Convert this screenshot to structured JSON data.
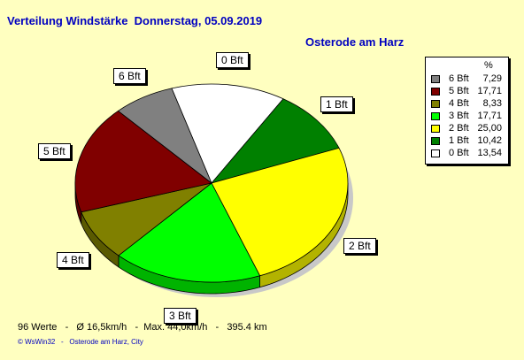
{
  "header": {
    "title": "Verteilung Windstärke  Donnerstag, 05.09.2019",
    "location": "Osterode am Harz"
  },
  "legend": {
    "unit_header": "%"
  },
  "chart_data": {
    "type": "pie",
    "title": "Verteilung Windstärke  Donnerstag, 05.09.2019",
    "subtitle": "Osterode am Harz",
    "legend_position": "top-right",
    "slices": [
      {
        "label": "0 Bft",
        "value": 13.54,
        "value_text": "13,54",
        "color": "#ffffff"
      },
      {
        "label": "1 Bft",
        "value": 10.42,
        "value_text": "10,42",
        "color": "#008000"
      },
      {
        "label": "2 Bft",
        "value": 25.0,
        "value_text": "25,00",
        "color": "#ffff00"
      },
      {
        "label": "3 Bft",
        "value": 17.71,
        "value_text": "17,71",
        "color": "#00ff00"
      },
      {
        "label": "4 Bft",
        "value": 8.33,
        "value_text": "8,33",
        "color": "#808000"
      },
      {
        "label": "5 Bft",
        "value": 17.71,
        "value_text": "17,71",
        "color": "#800000"
      },
      {
        "label": "6 Bft",
        "value": 7.29,
        "value_text": "7,29",
        "color": "#808080"
      }
    ]
  },
  "stats": {
    "text": "96 Werte   -   Ø 16,5km/h   -  Max. 44,0km/h   -   395.4 km"
  },
  "footer": {
    "text": "© WsWin32   -   Osterode am Harz, City"
  }
}
